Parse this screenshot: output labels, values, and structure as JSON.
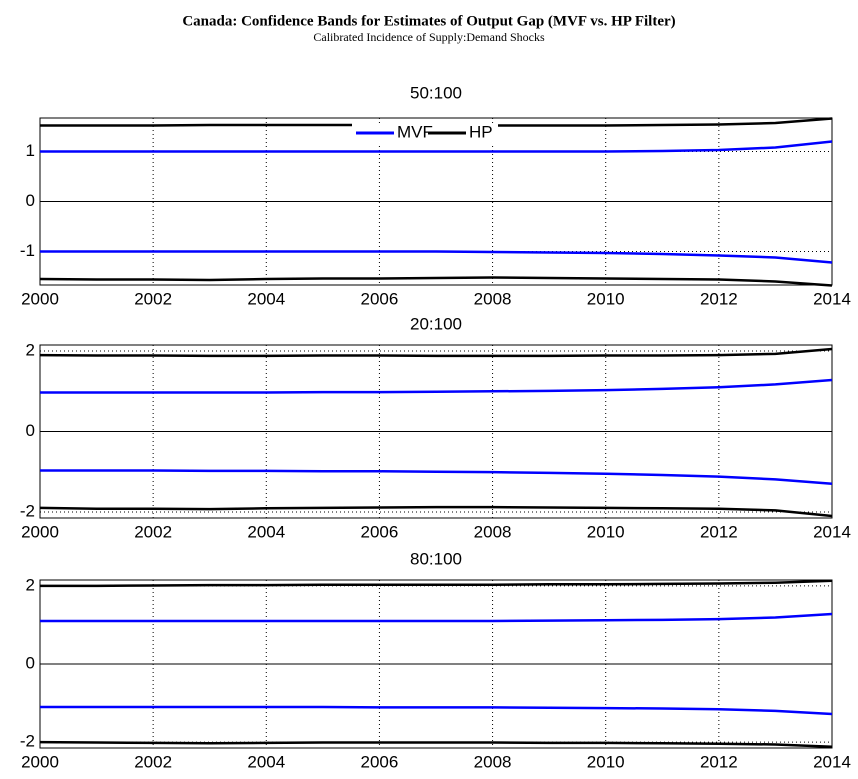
{
  "header": {
    "title": "Canada: Confidence Bands for Estimates of Output Gap (MVF vs. HP Filter)",
    "subtitle": "Calibrated Incidence of Supply:Demand Shocks"
  },
  "chart_data": [
    {
      "type": "line",
      "title": "50:100",
      "legend": "top",
      "x": [
        2000,
        2001,
        2002,
        2003,
        2004,
        2005,
        2006,
        2007,
        2008,
        2009,
        2010,
        2011,
        2012,
        2013,
        2014
      ],
      "xlim": [
        2000,
        2014
      ],
      "xticks": [
        2000,
        2002,
        2004,
        2006,
        2008,
        2010,
        2012,
        2014
      ],
      "ylim": [
        -1.67,
        1.67
      ],
      "yticks": [
        -1,
        0,
        1
      ],
      "grid": true,
      "series": [
        {
          "name": "MVF",
          "color": "#0000ff",
          "values": [
            1,
            1,
            1,
            1,
            1,
            1,
            1,
            1,
            1,
            1,
            1,
            1.01,
            1.03,
            1.08,
            1.2
          ],
          "lower": [
            -1,
            -1,
            -1,
            -1,
            -1,
            -1,
            -1,
            -1,
            -1.01,
            -1.02,
            -1.03,
            -1.05,
            -1.08,
            -1.12,
            -1.22
          ]
        },
        {
          "name": "HP",
          "color": "#000000",
          "values": [
            1.52,
            1.52,
            1.52,
            1.53,
            1.53,
            1.53,
            1.53,
            1.52,
            1.52,
            1.52,
            1.52,
            1.53,
            1.54,
            1.57,
            1.66
          ],
          "lower": [
            -1.55,
            -1.56,
            -1.56,
            -1.57,
            -1.55,
            -1.54,
            -1.54,
            -1.53,
            -1.52,
            -1.53,
            -1.54,
            -1.55,
            -1.56,
            -1.6,
            -1.68
          ]
        }
      ]
    },
    {
      "type": "line",
      "title": "20:100",
      "x": [
        2000,
        2001,
        2002,
        2003,
        2004,
        2005,
        2006,
        2007,
        2008,
        2009,
        2010,
        2011,
        2012,
        2013,
        2014
      ],
      "xlim": [
        2000,
        2014
      ],
      "xticks": [
        2000,
        2002,
        2004,
        2006,
        2008,
        2010,
        2012,
        2014
      ],
      "ylim": [
        -2.15,
        2.15
      ],
      "yticks": [
        -2,
        0,
        2
      ],
      "grid": true,
      "series": [
        {
          "color": "#0000ff",
          "values": [
            0.97,
            0.97,
            0.97,
            0.97,
            0.97,
            0.98,
            0.98,
            0.99,
            1,
            1.01,
            1.03,
            1.06,
            1.1,
            1.17,
            1.28
          ],
          "lower": [
            -0.97,
            -0.97,
            -0.97,
            -0.98,
            -0.98,
            -0.99,
            -0.99,
            -1,
            -1.01,
            -1.03,
            -1.05,
            -1.08,
            -1.12,
            -1.19,
            -1.3
          ]
        },
        {
          "color": "#000000",
          "values": [
            1.9,
            1.89,
            1.89,
            1.88,
            1.88,
            1.89,
            1.89,
            1.88,
            1.88,
            1.88,
            1.89,
            1.89,
            1.9,
            1.93,
            2.05
          ],
          "lower": [
            -1.9,
            -1.92,
            -1.92,
            -1.93,
            -1.91,
            -1.9,
            -1.89,
            -1.88,
            -1.88,
            -1.89,
            -1.9,
            -1.91,
            -1.92,
            -1.96,
            -2.1
          ]
        }
      ]
    },
    {
      "type": "line",
      "title": "80:100",
      "x": [
        2000,
        2001,
        2002,
        2003,
        2004,
        2005,
        2006,
        2007,
        2008,
        2009,
        2010,
        2011,
        2012,
        2013,
        2014
      ],
      "xlim": [
        2000,
        2014
      ],
      "xticks": [
        2000,
        2002,
        2004,
        2006,
        2008,
        2010,
        2012,
        2014
      ],
      "ylim": [
        -2.15,
        2.15
      ],
      "yticks": [
        -2,
        0,
        2
      ],
      "grid": true,
      "series": [
        {
          "color": "#0000ff",
          "values": [
            1.1,
            1.1,
            1.1,
            1.1,
            1.1,
            1.1,
            1.1,
            1.1,
            1.1,
            1.11,
            1.12,
            1.13,
            1.15,
            1.19,
            1.28
          ],
          "lower": [
            -1.1,
            -1.1,
            -1.1,
            -1.1,
            -1.1,
            -1.1,
            -1.11,
            -1.11,
            -1.11,
            -1.12,
            -1.13,
            -1.14,
            -1.16,
            -1.2,
            -1.28
          ]
        },
        {
          "color": "#000000",
          "values": [
            2,
            2,
            2.01,
            2.02,
            2.02,
            2.03,
            2.03,
            2.03,
            2.03,
            2.04,
            2.04,
            2.05,
            2.06,
            2.08,
            2.13
          ],
          "lower": [
            -2,
            -2.01,
            -2.02,
            -2.03,
            -2.02,
            -2.01,
            -2.01,
            -2.01,
            -2.01,
            -2.02,
            -2.02,
            -2.03,
            -2.04,
            -2.06,
            -2.12
          ]
        }
      ]
    }
  ]
}
